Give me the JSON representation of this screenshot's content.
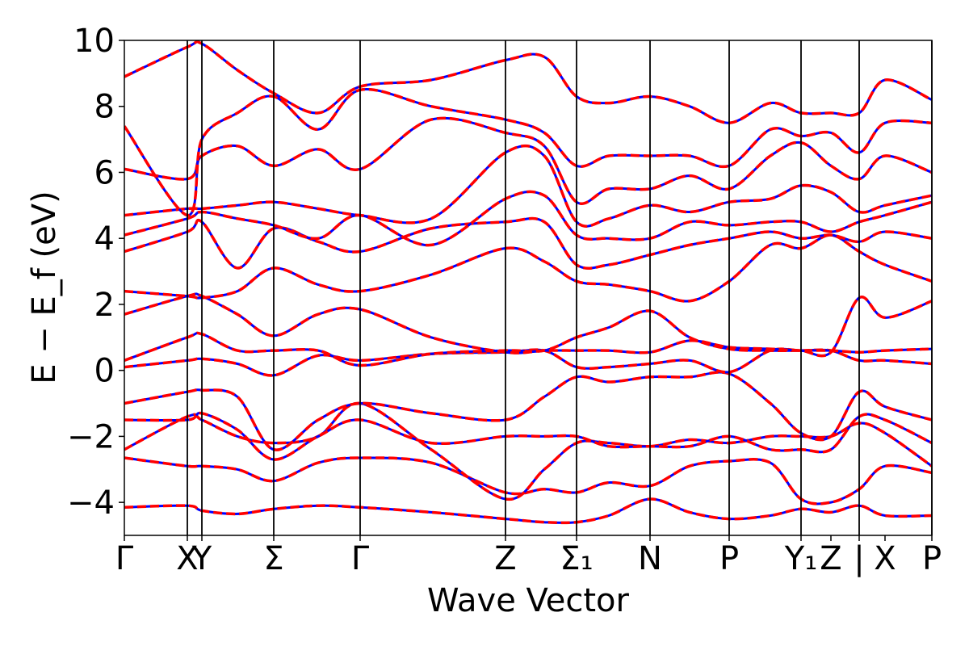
{
  "chart_data": {
    "type": "line",
    "title": "",
    "xlabel": "Wave Vector",
    "ylabel": "E − E_f (eV)",
    "ylim": [
      -5,
      10
    ],
    "yticks": [
      "−4",
      "−2",
      "0",
      "2",
      "4",
      "6",
      "8",
      "10"
    ],
    "ytick_values": [
      -4,
      -2,
      0,
      2,
      4,
      6,
      8,
      10
    ],
    "xlim": [
      0,
      1.0
    ],
    "kpoints": [
      {
        "label": "Γ",
        "x": 0.0
      },
      {
        "label": "X",
        "x": 0.078
      },
      {
        "label": "Y",
        "x": 0.096
      },
      {
        "label": "Σ",
        "x": 0.185
      },
      {
        "label": "Γ",
        "x": 0.292
      },
      {
        "label": "Z",
        "x": 0.472
      },
      {
        "label": "Σ₁",
        "x": 0.56
      },
      {
        "label": "N",
        "x": 0.651
      },
      {
        "label": "P",
        "x": 0.749
      },
      {
        "label": "Y₁",
        "x": 0.838
      },
      {
        "label": "Z",
        "x": 0.875
      },
      {
        "label": "|",
        "x": 0.91
      },
      {
        "label": "X",
        "x": 0.942
      },
      {
        "label": "P",
        "x": 1.0
      }
    ],
    "separators": [
      0.078,
      0.096,
      0.185,
      0.292,
      0.472,
      0.56,
      0.651,
      0.749,
      0.838,
      0.91,
      1.0
    ],
    "series_style": [
      {
        "color": "#0000ff",
        "dash": "solid"
      },
      {
        "color": "#ff0000",
        "dash": "dashed"
      }
    ],
    "bands": [
      {
        "x": [
          0,
          0.078,
          0.096,
          0.14,
          0.185,
          0.24,
          0.292,
          0.38,
          0.472,
          0.52,
          0.56,
          0.6,
          0.651,
          0.7,
          0.749,
          0.8,
          0.838,
          0.875,
          0.91,
          0.942,
          1.0
        ],
        "y": [
          -4.15,
          -4.1,
          -4.25,
          -4.35,
          -4.2,
          -4.1,
          -4.15,
          -4.3,
          -4.5,
          -4.6,
          -4.6,
          -4.4,
          -3.9,
          -4.3,
          -4.5,
          -4.4,
          -4.2,
          -4.3,
          -4.1,
          -4.4,
          -4.4
        ]
      },
      {
        "x": [
          0,
          0.078,
          0.096,
          0.14,
          0.185,
          0.24,
          0.292,
          0.38,
          0.472,
          0.52,
          0.56,
          0.6,
          0.651,
          0.7,
          0.749,
          0.8,
          0.838,
          0.875,
          0.91,
          0.942,
          1.0
        ],
        "y": [
          -2.65,
          -2.9,
          -2.9,
          -3.0,
          -3.35,
          -2.8,
          -2.65,
          -2.8,
          -3.7,
          -3.6,
          -3.7,
          -3.4,
          -3.5,
          -2.9,
          -2.75,
          -2.8,
          -3.9,
          -4.0,
          -3.6,
          -2.9,
          -3.1
        ]
      },
      {
        "x": [
          0,
          0.078,
          0.096,
          0.14,
          0.185,
          0.24,
          0.292,
          0.38,
          0.472,
          0.52,
          0.56,
          0.6,
          0.651,
          0.7,
          0.749,
          0.8,
          0.838,
          0.875,
          0.91,
          0.942,
          1.0
        ],
        "y": [
          -2.4,
          -1.4,
          -1.5,
          -2.0,
          -2.2,
          -2.0,
          -1.0,
          -2.4,
          -3.9,
          -3.0,
          -2.2,
          -2.2,
          -2.3,
          -2.1,
          -2.2,
          -2.0,
          -2.0,
          -2.0,
          -1.6,
          -1.9,
          -2.9
        ]
      },
      {
        "x": [
          0,
          0.078,
          0.096,
          0.14,
          0.185,
          0.24,
          0.292,
          0.38,
          0.472,
          0.52,
          0.56,
          0.6,
          0.651,
          0.7,
          0.749,
          0.8,
          0.838,
          0.875,
          0.91,
          0.942,
          1.0
        ],
        "y": [
          -1.5,
          -1.5,
          -1.3,
          -1.8,
          -2.7,
          -2.0,
          -1.5,
          -2.2,
          -2.0,
          -2.0,
          -2.0,
          -2.3,
          -2.3,
          -2.3,
          -2.0,
          -2.4,
          -2.4,
          -2.4,
          -1.4,
          -1.5,
          -2.2
        ]
      },
      {
        "x": [
          0,
          0.078,
          0.096,
          0.14,
          0.185,
          0.24,
          0.292,
          0.38,
          0.472,
          0.52,
          0.56,
          0.6,
          0.651,
          0.7,
          0.749,
          0.8,
          0.838,
          0.875,
          0.91,
          0.942,
          1.0
        ],
        "y": [
          -1.0,
          -0.65,
          -0.6,
          -0.8,
          -2.4,
          -1.5,
          -1.0,
          -1.3,
          -1.5,
          -0.8,
          -0.2,
          -0.35,
          -0.2,
          -0.2,
          -0.1,
          -1.0,
          -1.9,
          -2.0,
          -0.65,
          -1.1,
          -1.5
        ]
      },
      {
        "x": [
          0,
          0.078,
          0.096,
          0.14,
          0.185,
          0.24,
          0.292,
          0.38,
          0.472,
          0.52,
          0.56,
          0.6,
          0.651,
          0.7,
          0.749,
          0.8,
          0.838,
          0.875,
          0.91,
          0.942,
          1.0
        ],
        "y": [
          0.1,
          0.3,
          0.35,
          0.2,
          -0.15,
          0.45,
          0.3,
          0.5,
          0.55,
          0.6,
          0.1,
          0.1,
          0.2,
          0.3,
          -0.05,
          0.6,
          0.6,
          0.6,
          0.3,
          0.3,
          0.2
        ]
      },
      {
        "x": [
          0,
          0.078,
          0.096,
          0.14,
          0.185,
          0.24,
          0.292,
          0.38,
          0.472,
          0.52,
          0.56,
          0.6,
          0.651,
          0.7,
          0.749,
          0.8,
          0.838,
          0.875,
          0.91,
          0.942,
          1.0
        ],
        "y": [
          0.3,
          1.0,
          1.1,
          0.6,
          0.6,
          0.6,
          0.15,
          0.5,
          0.6,
          0.6,
          1.0,
          1.3,
          1.8,
          1.0,
          0.65,
          0.6,
          0.6,
          0.6,
          0.55,
          0.6,
          0.65
        ]
      },
      {
        "x": [
          0,
          0.078,
          0.096,
          0.14,
          0.185,
          0.24,
          0.292,
          0.38,
          0.472,
          0.52,
          0.56,
          0.6,
          0.651,
          0.7,
          0.749,
          0.8,
          0.838,
          0.875,
          0.91,
          0.942,
          1.0
        ],
        "y": [
          1.7,
          2.25,
          2.25,
          1.7,
          1.05,
          1.7,
          1.85,
          1.0,
          0.55,
          0.6,
          0.6,
          0.6,
          0.55,
          0.9,
          0.7,
          0.65,
          0.6,
          0.55,
          2.2,
          1.6,
          2.1
        ]
      },
      {
        "x": [
          0,
          0.078,
          0.096,
          0.14,
          0.185,
          0.24,
          0.292,
          0.38,
          0.472,
          0.52,
          0.56,
          0.6,
          0.651,
          0.7,
          0.749,
          0.8,
          0.838,
          0.875,
          0.91,
          0.942,
          1.0
        ],
        "y": [
          2.4,
          2.25,
          2.2,
          2.4,
          3.1,
          2.6,
          2.4,
          2.9,
          3.7,
          3.3,
          2.7,
          2.6,
          2.4,
          2.1,
          2.7,
          3.8,
          3.7,
          4.1,
          3.6,
          3.2,
          2.7
        ]
      },
      {
        "x": [
          0,
          0.078,
          0.096,
          0.14,
          0.185,
          0.24,
          0.292,
          0.38,
          0.472,
          0.52,
          0.56,
          0.6,
          0.651,
          0.7,
          0.749,
          0.8,
          0.838,
          0.875,
          0.91,
          0.942,
          1.0
        ],
        "y": [
          3.6,
          4.2,
          4.5,
          3.1,
          4.3,
          3.9,
          3.6,
          4.3,
          4.5,
          4.5,
          3.2,
          3.2,
          3.5,
          3.8,
          4.0,
          4.2,
          4.0,
          4.1,
          3.9,
          4.2,
          4.0
        ]
      },
      {
        "x": [
          0,
          0.078,
          0.096,
          0.14,
          0.185,
          0.24,
          0.292,
          0.38,
          0.472,
          0.52,
          0.56,
          0.6,
          0.651,
          0.7,
          0.749,
          0.8,
          0.838,
          0.875,
          0.91,
          0.942,
          1.0
        ],
        "y": [
          4.1,
          4.6,
          4.8,
          4.6,
          4.4,
          4.0,
          4.7,
          3.8,
          5.2,
          5.3,
          4.1,
          4.0,
          4.0,
          4.5,
          4.4,
          4.5,
          4.5,
          4.2,
          4.5,
          4.7,
          5.1
        ]
      },
      {
        "x": [
          0,
          0.078,
          0.096,
          0.14,
          0.185,
          0.24,
          0.292,
          0.38,
          0.472,
          0.52,
          0.56,
          0.6,
          0.651,
          0.7,
          0.749,
          0.8,
          0.838,
          0.875,
          0.91,
          0.942,
          1.0
        ],
        "y": [
          4.7,
          4.9,
          4.9,
          5.0,
          5.1,
          4.9,
          4.7,
          4.6,
          6.6,
          6.5,
          4.5,
          4.6,
          5.0,
          4.8,
          5.1,
          5.2,
          5.6,
          5.4,
          4.8,
          5.0,
          5.3
        ]
      },
      {
        "x": [
          0,
          0.078,
          0.096,
          0.14,
          0.185,
          0.24,
          0.292,
          0.38,
          0.472,
          0.52,
          0.56,
          0.6,
          0.651,
          0.7,
          0.749,
          0.8,
          0.838,
          0.875,
          0.91,
          0.942,
          1.0
        ],
        "y": [
          6.1,
          5.8,
          6.5,
          6.8,
          6.2,
          6.7,
          6.1,
          7.6,
          7.2,
          6.8,
          5.1,
          5.5,
          5.5,
          5.9,
          5.5,
          6.5,
          6.9,
          6.2,
          5.8,
          6.5,
          6.0
        ]
      },
      {
        "x": [
          0,
          0.078,
          0.096,
          0.14,
          0.185,
          0.24,
          0.292,
          0.38,
          0.472,
          0.52,
          0.56,
          0.6,
          0.651,
          0.7,
          0.749,
          0.8,
          0.838,
          0.875,
          0.91,
          0.942,
          1.0
        ],
        "y": [
          7.4,
          4.7,
          7.0,
          7.8,
          8.3,
          7.3,
          8.5,
          8.0,
          7.6,
          7.2,
          6.2,
          6.5,
          6.5,
          6.5,
          6.2,
          7.3,
          7.1,
          7.2,
          6.6,
          7.5,
          7.5
        ]
      },
      {
        "x": [
          0,
          0.078,
          0.096,
          0.14,
          0.185,
          0.24,
          0.292,
          0.38,
          0.472,
          0.52,
          0.56,
          0.6,
          0.651,
          0.7,
          0.749,
          0.8,
          0.838,
          0.875,
          0.91,
          0.942,
          1.0
        ],
        "y": [
          8.9,
          9.8,
          9.9,
          9.1,
          8.4,
          7.8,
          8.6,
          8.8,
          9.4,
          9.5,
          8.3,
          8.1,
          8.3,
          8.0,
          7.5,
          8.1,
          7.8,
          7.8,
          7.8,
          8.8,
          8.2
        ]
      }
    ]
  }
}
